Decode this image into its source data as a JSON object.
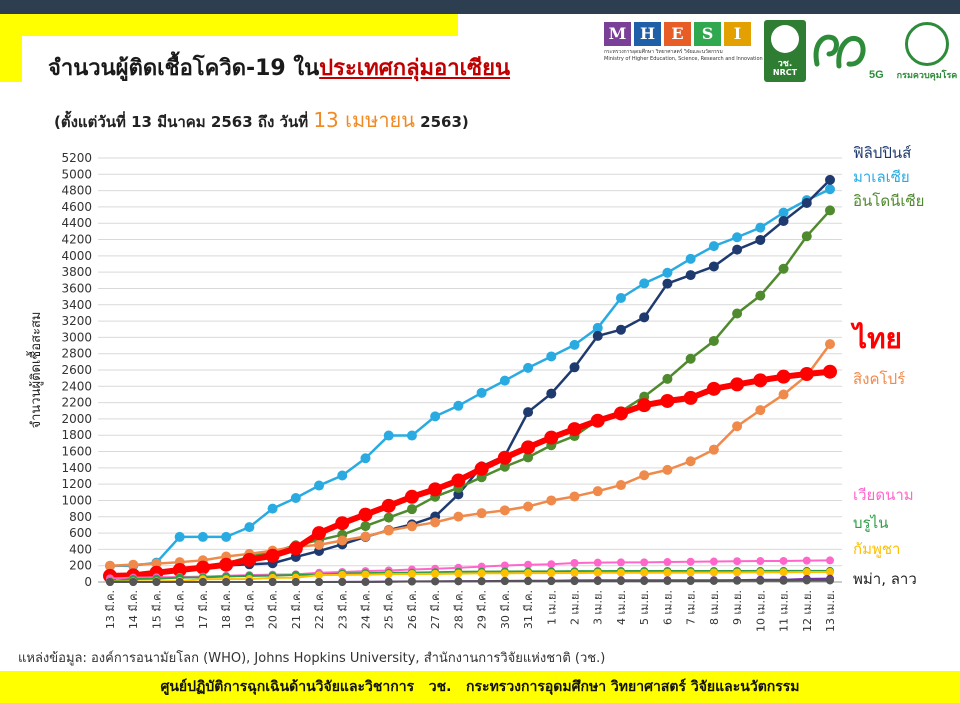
{
  "header": {
    "title_main": "จำนวนผู้ติดเชื้อโควิด-19 ใน",
    "title_highlight": "ประเทศกลุ่มอาเซียน",
    "subtitle_pre": "(ตั้งแต่วันที่ 13 มีนาคม 2563 ถึง วันที่ ",
    "subtitle_date": "13 เมษายน",
    "subtitle_post": " 2563)"
  },
  "logos": {
    "mhesi_letters": [
      "M",
      "H",
      "E",
      "S",
      "I"
    ],
    "mhesi_caption": "กระทรวงการอุดมศึกษา วิทยาศาสตร์ วิจัยและนวัตกรรม",
    "mhesi_caption_en": "Ministry of Higher Education, Science, Research and Innovation",
    "nrct": "วช.",
    "nrct_en": "NRCT",
    "g5": "5G",
    "ddc": "กรมควบคุมโรค"
  },
  "source": "แหล่งข้อมูล: องค์การอนามัยโลก (WHO), Johns Hopkins University, สำนักงานการวิจัยแห่งชาติ (วช.)",
  "footer": "ศูนย์ปฏิบัติการฉุกเฉินด้านวิจัยและวิชาการ   วช.   กระทรวงการอุดมศึกษา วิทยาศาสตร์ วิจัยและนวัตกรรม",
  "chart_data": {
    "type": "line",
    "ylabel": "จำนวนผู้ติดเชื้อสะสม",
    "xlabel": "",
    "ylim": [
      0,
      5200
    ],
    "ytick_step": 200,
    "grid": true,
    "categories": [
      "13 มี.ค.",
      "14 มี.ค.",
      "15 มี.ค.",
      "16 มี.ค.",
      "17 มี.ค.",
      "18 มี.ค.",
      "19 มี.ค.",
      "20 มี.ค.",
      "21 มี.ค.",
      "22 มี.ค.",
      "23 มี.ค.",
      "24 มี.ค.",
      "25 มี.ค.",
      "26 มี.ค.",
      "27 มี.ค.",
      "28 มี.ค.",
      "29 มี.ค.",
      "30 มี.ค.",
      "31 มี.ค.",
      "1 เม.ย.",
      "2 เม.ย.",
      "3 เม.ย.",
      "4 เม.ย.",
      "5 เม.ย.",
      "6 เม.ย.",
      "7 เม.ย.",
      "8 เม.ย.",
      "9 เม.ย.",
      "10 เม.ย.",
      "11 เม.ย.",
      "12 เม.ย.",
      "13 เม.ย."
    ],
    "series": [
      {
        "name": "มาเลเซีย",
        "color": "#29abe2",
        "width": 2.5,
        "marker": 5,
        "values": [
          197,
          200,
          238,
          553,
          553,
          553,
          673,
          900,
          1030,
          1183,
          1306,
          1518,
          1796,
          1796,
          2031,
          2161,
          2320,
          2470,
          2626,
          2766,
          2908,
          3116,
          3483,
          3662,
          3793,
          3963,
          4119,
          4228,
          4346,
          4530,
          4683,
          4817
        ]
      },
      {
        "name": "ฟิลิปปินส์",
        "color": "#1f3a6e",
        "width": 2.5,
        "marker": 5,
        "values": [
          52,
          64,
          111,
          140,
          187,
          202,
          217,
          230,
          307,
          380,
          462,
          552,
          636,
          707,
          803,
          1075,
          1418,
          1546,
          2084,
          2311,
          2633,
          3018,
          3094,
          3246,
          3660,
          3764,
          3870,
          4076,
          4195,
          4428,
          4648,
          4932
        ]
      },
      {
        "name": "อินโดนีเซีย",
        "color": "#4f8a2e",
        "width": 2.5,
        "marker": 5,
        "values": [
          69,
          96,
          117,
          134,
          172,
          227,
          309,
          369,
          450,
          514,
          579,
          686,
          790,
          893,
          1046,
          1155,
          1285,
          1414,
          1528,
          1677,
          1790,
          1986,
          2092,
          2273,
          2491,
          2738,
          2956,
          3293,
          3512,
          3842,
          4241,
          4557
        ]
      },
      {
        "name": "สิงคโปร์",
        "color": "#f08a4b",
        "width": 2.5,
        "marker": 5,
        "values": [
          200,
          212,
          226,
          243,
          266,
          313,
          345,
          385,
          432,
          455,
          509,
          558,
          631,
          683,
          732,
          802,
          844,
          879,
          926,
          1000,
          1049,
          1114,
          1189,
          1309,
          1375,
          1481,
          1623,
          1910,
          2108,
          2299,
          2532,
          2918
        ]
      },
      {
        "name": "ไทย",
        "color": "#ff0000",
        "width": 6,
        "marker": 7,
        "values": [
          75,
          82,
          114,
          147,
          177,
          212,
          272,
          322,
          411,
          599,
          721,
          827,
          934,
          1045,
          1136,
          1245,
          1388,
          1524,
          1651,
          1771,
          1875,
          1978,
          2067,
          2169,
          2220,
          2258,
          2369,
          2423,
          2473,
          2518,
          2551,
          2579
        ]
      },
      {
        "name": "เวียดนาม",
        "color": "#ff66cc",
        "width": 2,
        "marker": 4,
        "values": [
          44,
          53,
          56,
          61,
          66,
          76,
          85,
          91,
          94,
          113,
          123,
          134,
          141,
          153,
          163,
          174,
          188,
          203,
          212,
          218,
          233,
          237,
          240,
          241,
          245,
          249,
          251,
          255,
          257,
          258,
          262,
          265
        ]
      },
      {
        "name": "บรูไน",
        "color": "#2e9e45",
        "width": 2,
        "marker": 4,
        "values": [
          11,
          37,
          40,
          54,
          56,
          68,
          75,
          78,
          88,
          91,
          104,
          109,
          114,
          115,
          120,
          126,
          127,
          129,
          130,
          131,
          133,
          134,
          135,
          135,
          135,
          135,
          135,
          135,
          136,
          136,
          136,
          136
        ]
      },
      {
        "name": "กัมพูชา",
        "color": "#ffc000",
        "width": 2,
        "marker": 4,
        "values": [
          5,
          7,
          7,
          12,
          33,
          35,
          37,
          51,
          53,
          84,
          87,
          91,
          96,
          98,
          99,
          103,
          107,
          107,
          109,
          109,
          110,
          114,
          114,
          114,
          115,
          115,
          117,
          117,
          119,
          120,
          122,
          122
        ]
      },
      {
        "name": "พม่า",
        "color": "#7030a0",
        "width": 2,
        "marker": 4,
        "values": [
          0,
          0,
          0,
          0,
          0,
          0,
          0,
          0,
          0,
          0,
          2,
          3,
          5,
          8,
          8,
          10,
          10,
          14,
          15,
          15,
          20,
          21,
          21,
          21,
          22,
          22,
          22,
          23,
          27,
          28,
          39,
          41
        ]
      },
      {
        "name": "ลาว",
        "color": "#555555",
        "width": 2,
        "marker": 4,
        "values": [
          0,
          0,
          0,
          0,
          0,
          0,
          0,
          0,
          0,
          0,
          0,
          0,
          3,
          6,
          8,
          8,
          9,
          10,
          10,
          10,
          10,
          11,
          11,
          11,
          12,
          12,
          13,
          15,
          15,
          15,
          19,
          19
        ]
      }
    ],
    "legend_labels": [
      {
        "text": "ฟิลิปปินส์",
        "color": "#1f3a6e",
        "size": 15
      },
      {
        "text": "มาเลเซีย",
        "color": "#29abe2",
        "size": 15
      },
      {
        "text": "อินโดนีเซีย",
        "color": "#4f8a2e",
        "size": 15
      },
      {
        "text": "ไทย",
        "color": "#ff0000",
        "size": 28
      },
      {
        "text": "สิงคโปร์",
        "color": "#f08a4b",
        "size": 15
      },
      {
        "text": "เวียดนาม",
        "color": "#ff66cc",
        "size": 15
      },
      {
        "text": "บรูไน",
        "color": "#2e9e45",
        "size": 15
      },
      {
        "text": "กัมพูชา",
        "color": "#ffc000",
        "size": 15
      },
      {
        "text": "พม่า, ลาว",
        "color": "#222222",
        "size": 15
      }
    ]
  }
}
